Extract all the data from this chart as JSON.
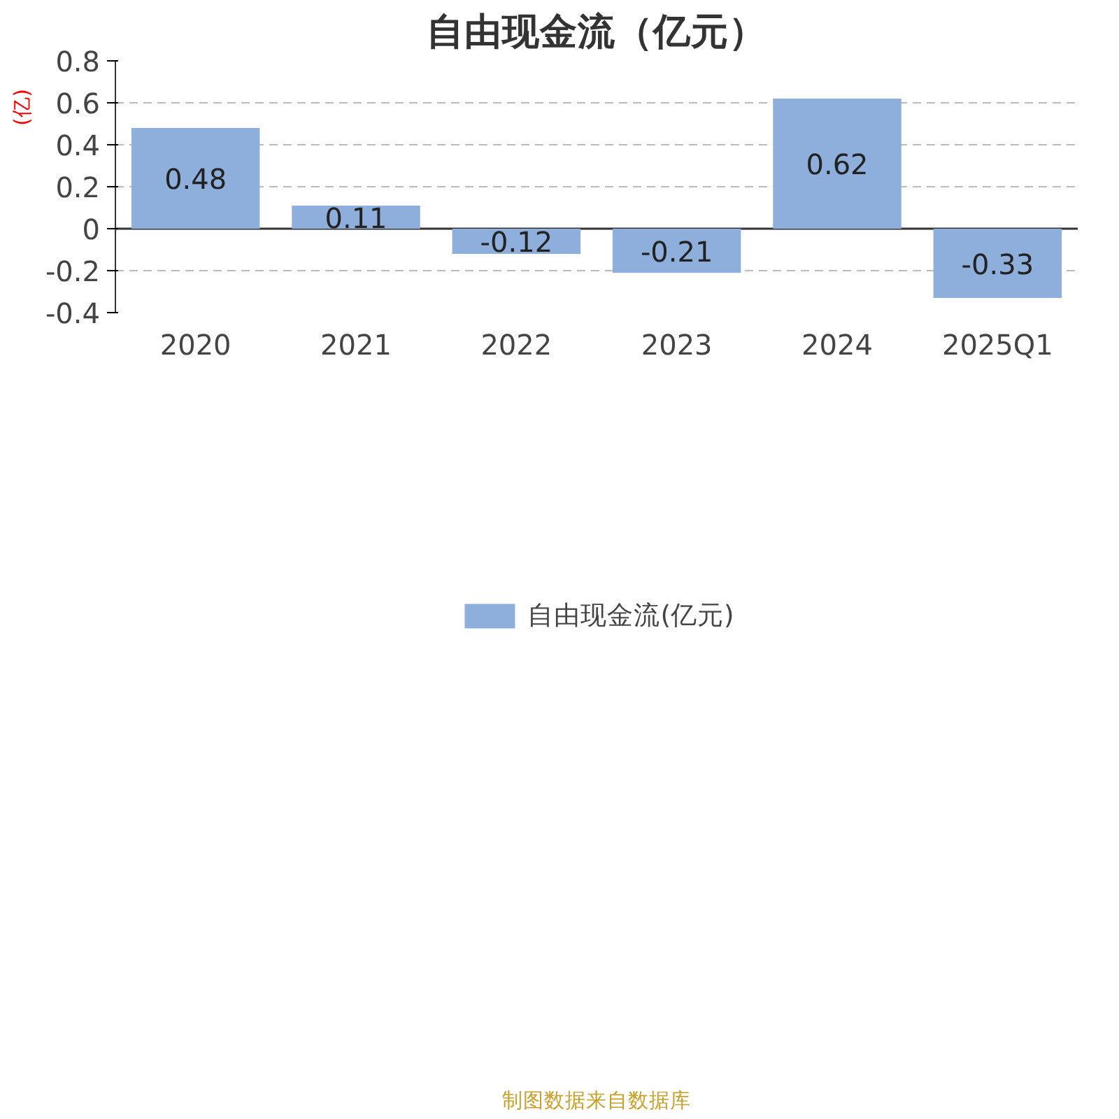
{
  "chart_data": {
    "type": "bar",
    "title": "自由现金流（亿元）",
    "ylabel": "(亿)",
    "categories": [
      "2020",
      "2021",
      "2022",
      "2023",
      "2024",
      "2025Q1"
    ],
    "series": [
      {
        "name": "自由现金流(亿元)",
        "color": "#8eaedb",
        "values": [
          0.48,
          0.11,
          -0.12,
          -0.21,
          0.62,
          -0.33
        ]
      }
    ],
    "ylim": [
      -0.4,
      0.8
    ],
    "yticks": [
      -0.4,
      -0.2,
      0,
      0.2,
      0.4,
      0.6,
      0.8
    ],
    "grid": "y",
    "legend": "bottom",
    "data_labels": true,
    "annotations": [
      "制图数据来自数据库"
    ]
  }
}
